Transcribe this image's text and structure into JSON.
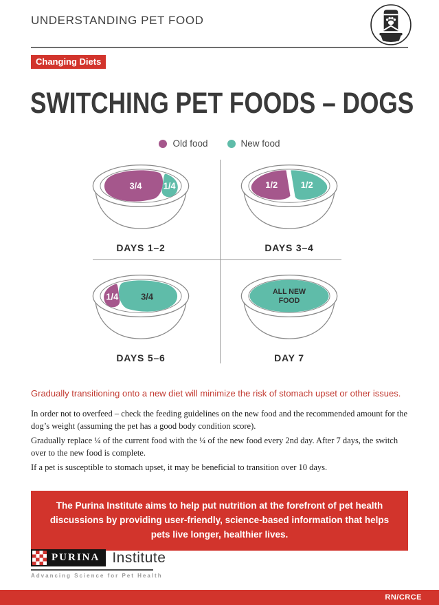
{
  "header": {
    "title": "UNDERSTANDING PET FOOD"
  },
  "badge": {
    "label": "Changing Diets"
  },
  "title": "SWITCHING PET FOODS – DOGS",
  "legend": {
    "old_label": "Old food",
    "new_label": "New food"
  },
  "diagram": {
    "bowls": [
      {
        "label": "DAYS 1–2",
        "portions": [
          {
            "food": "old",
            "text": "3/4"
          },
          {
            "food": "new",
            "text": "1/4"
          }
        ]
      },
      {
        "label": "DAYS 3–4",
        "portions": [
          {
            "food": "old",
            "text": "1/2"
          },
          {
            "food": "new",
            "text": "1/2"
          }
        ]
      },
      {
        "label": "DAYS 5–6",
        "portions": [
          {
            "food": "old",
            "text": "1/4"
          },
          {
            "food": "new",
            "text": "3/4"
          }
        ]
      },
      {
        "label": "DAY 7",
        "portions": [
          {
            "food": "new",
            "text": "ALL NEW FOOD"
          }
        ]
      }
    ]
  },
  "intro": "Gradually transitioning onto a new diet will minimize the risk of stomach upset or other issues.",
  "paragraphs": [
    "In order not to overfeed – check the feeding guidelines on the new food and the recommended amount for the dog’s weight (assuming the pet has a good body condition score).",
    "Gradually replace ¼ of the current food with the ¼ of the new food every 2nd day. After 7 days, the switch over to the new food is complete.",
    "If a pet is susceptible to stomach upset, it may be beneficial to transition over 10 days."
  ],
  "callout": "The Purina Institute aims to help put nutrition at the forefront of pet health discussions by providing user-friendly, science-based information that helps pets live longer, healthier lives.",
  "footer": {
    "brand": "PURINA",
    "brand_suffix": "Institute",
    "tagline": "Advancing Science for Pet Health",
    "corner_tag": "RN/CRCE"
  },
  "colors": {
    "brand_red": "#D2342C",
    "intro_red": "#C23A31",
    "old_food": "#A5578C",
    "new_food": "#5FBCA9"
  }
}
